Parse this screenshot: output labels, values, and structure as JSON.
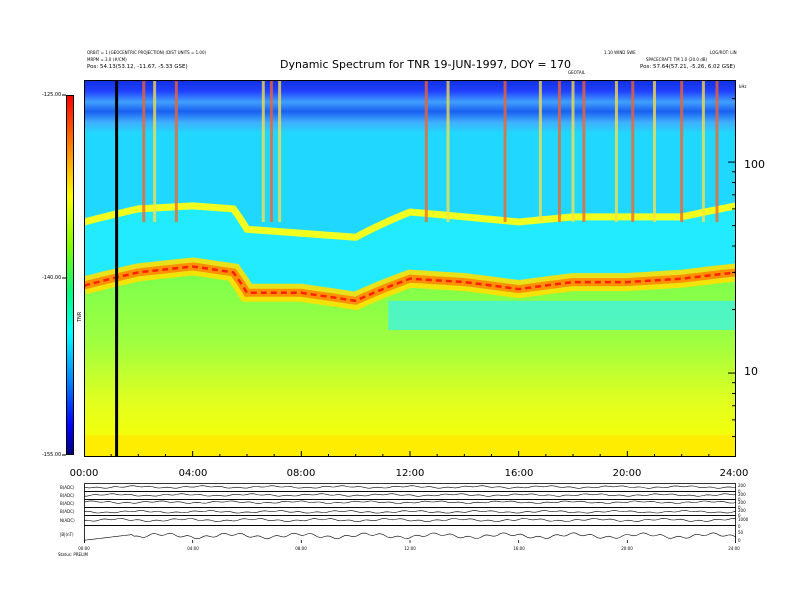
{
  "header": {
    "title": "Dynamic Spectrum for TNR 19-JUN-1997, DOY = 170",
    "left_line1": "ORBIT = 1 (GEOCENTRIC PROJECTION) (DIST UNITS = 1.00)",
    "left_line2": "MRPM = 3.0 (#/CM)",
    "left_line3": "Pos:  54.13(53.12, -11.67, -5.33 GSE)",
    "right_line1": "1.10 WIND SWE",
    "right_line2": "SPACECRAFT: TM 1.0 (20.0 dB)",
    "right_line3": "Pos:  57.64(57.21, -5.26, 6.02 GSE)",
    "right_corner": "LOG/ROT: LIN",
    "marker_label": "GEOTAIL",
    "unit_label": "kHz"
  },
  "colorbar": {
    "label": "TNR",
    "ticks": [
      "-125.00",
      "-140.00",
      "-155.00"
    ]
  },
  "chart_data": [
    {
      "type": "heatmap",
      "title": "Dynamic Spectrum for TNR 19-JUN-1997, DOY = 170",
      "x": {
        "ticks": [
          "00:00",
          "04:00",
          "08:00",
          "12:00",
          "16:00",
          "20:00",
          "24:00"
        ],
        "range": [
          0,
          24
        ]
      },
      "y": {
        "scale": "log",
        "ticks": [
          "10",
          "100"
        ],
        "range": [
          4,
          245
        ],
        "unit": "kHz"
      },
      "z": {
        "range": [
          -155,
          -125
        ],
        "ticks": [
          -125,
          -140,
          -155
        ]
      },
      "plasma_line_khz": {
        "hours": [
          0,
          2,
          4,
          5.5,
          6,
          8,
          10,
          12,
          14,
          16,
          18,
          20,
          22,
          24
        ],
        "values": [
          26,
          30,
          32,
          30,
          24,
          24,
          22,
          28,
          27,
          25,
          27,
          27,
          28,
          30
        ]
      },
      "cutoff_khz": {
        "hours": [
          0,
          2,
          4,
          5.5,
          6,
          8,
          10,
          12,
          14,
          16,
          18,
          20,
          22,
          24
        ],
        "values": [
          52,
          60,
          62,
          60,
          48,
          46,
          44,
          58,
          55,
          52,
          55,
          55,
          55,
          62
        ]
      },
      "marker_hour": 1.2
    },
    {
      "type": "line",
      "x_ticks": [
        "00:00",
        "04:00",
        "08:00",
        "12:00",
        "16:00",
        "20:00",
        "24:00"
      ],
      "series": [
        {
          "name": "B(ADC)",
          "right_ticks": [
            "200",
            "0"
          ]
        },
        {
          "name": "B(ADC)",
          "right_ticks": [
            "200",
            "0"
          ]
        },
        {
          "name": "B(ADC)",
          "right_ticks": [
            "200",
            "0"
          ]
        },
        {
          "name": "B(ADC)",
          "right_ticks": [
            "200",
            "0"
          ]
        },
        {
          "name": "N(ADC)",
          "right_ticks": [
            "1000",
            "0"
          ]
        },
        {
          "name": "|B|(nT)",
          "right_ticks": [
            "50",
            "0"
          ]
        }
      ],
      "footer": "Status: PRELIM"
    }
  ]
}
